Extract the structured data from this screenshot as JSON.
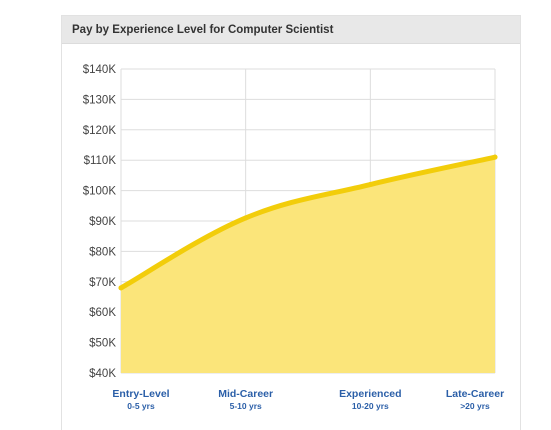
{
  "header": {
    "title": "Pay by Experience Level for Computer Scientist"
  },
  "colors": {
    "line": "#f2cd0a",
    "fill": "#fbe57a",
    "grid": "#dddddd",
    "category_text": "#2b5fa8"
  },
  "chart_data": {
    "type": "area",
    "title": "Pay by Experience Level for Computer Scientist",
    "categories": [
      "Entry-Level",
      "Mid-Career",
      "Experienced",
      "Late-Career"
    ],
    "category_sublabels": [
      "0-5 yrs",
      "5-10 yrs",
      "10-20 yrs",
      ">20 yrs"
    ],
    "values": [
      68000,
      91000,
      102000,
      111000
    ],
    "ylim": [
      40000,
      140000
    ],
    "yticks": [
      140000,
      130000,
      120000,
      110000,
      100000,
      90000,
      80000,
      70000,
      60000,
      50000,
      40000
    ],
    "ytick_labels": [
      "$140K",
      "$130K",
      "$120K",
      "$110K",
      "$100K",
      "$90K",
      "$80K",
      "$70K",
      "$60K",
      "$50K",
      "$40K"
    ],
    "grid": true,
    "legend": "none"
  }
}
